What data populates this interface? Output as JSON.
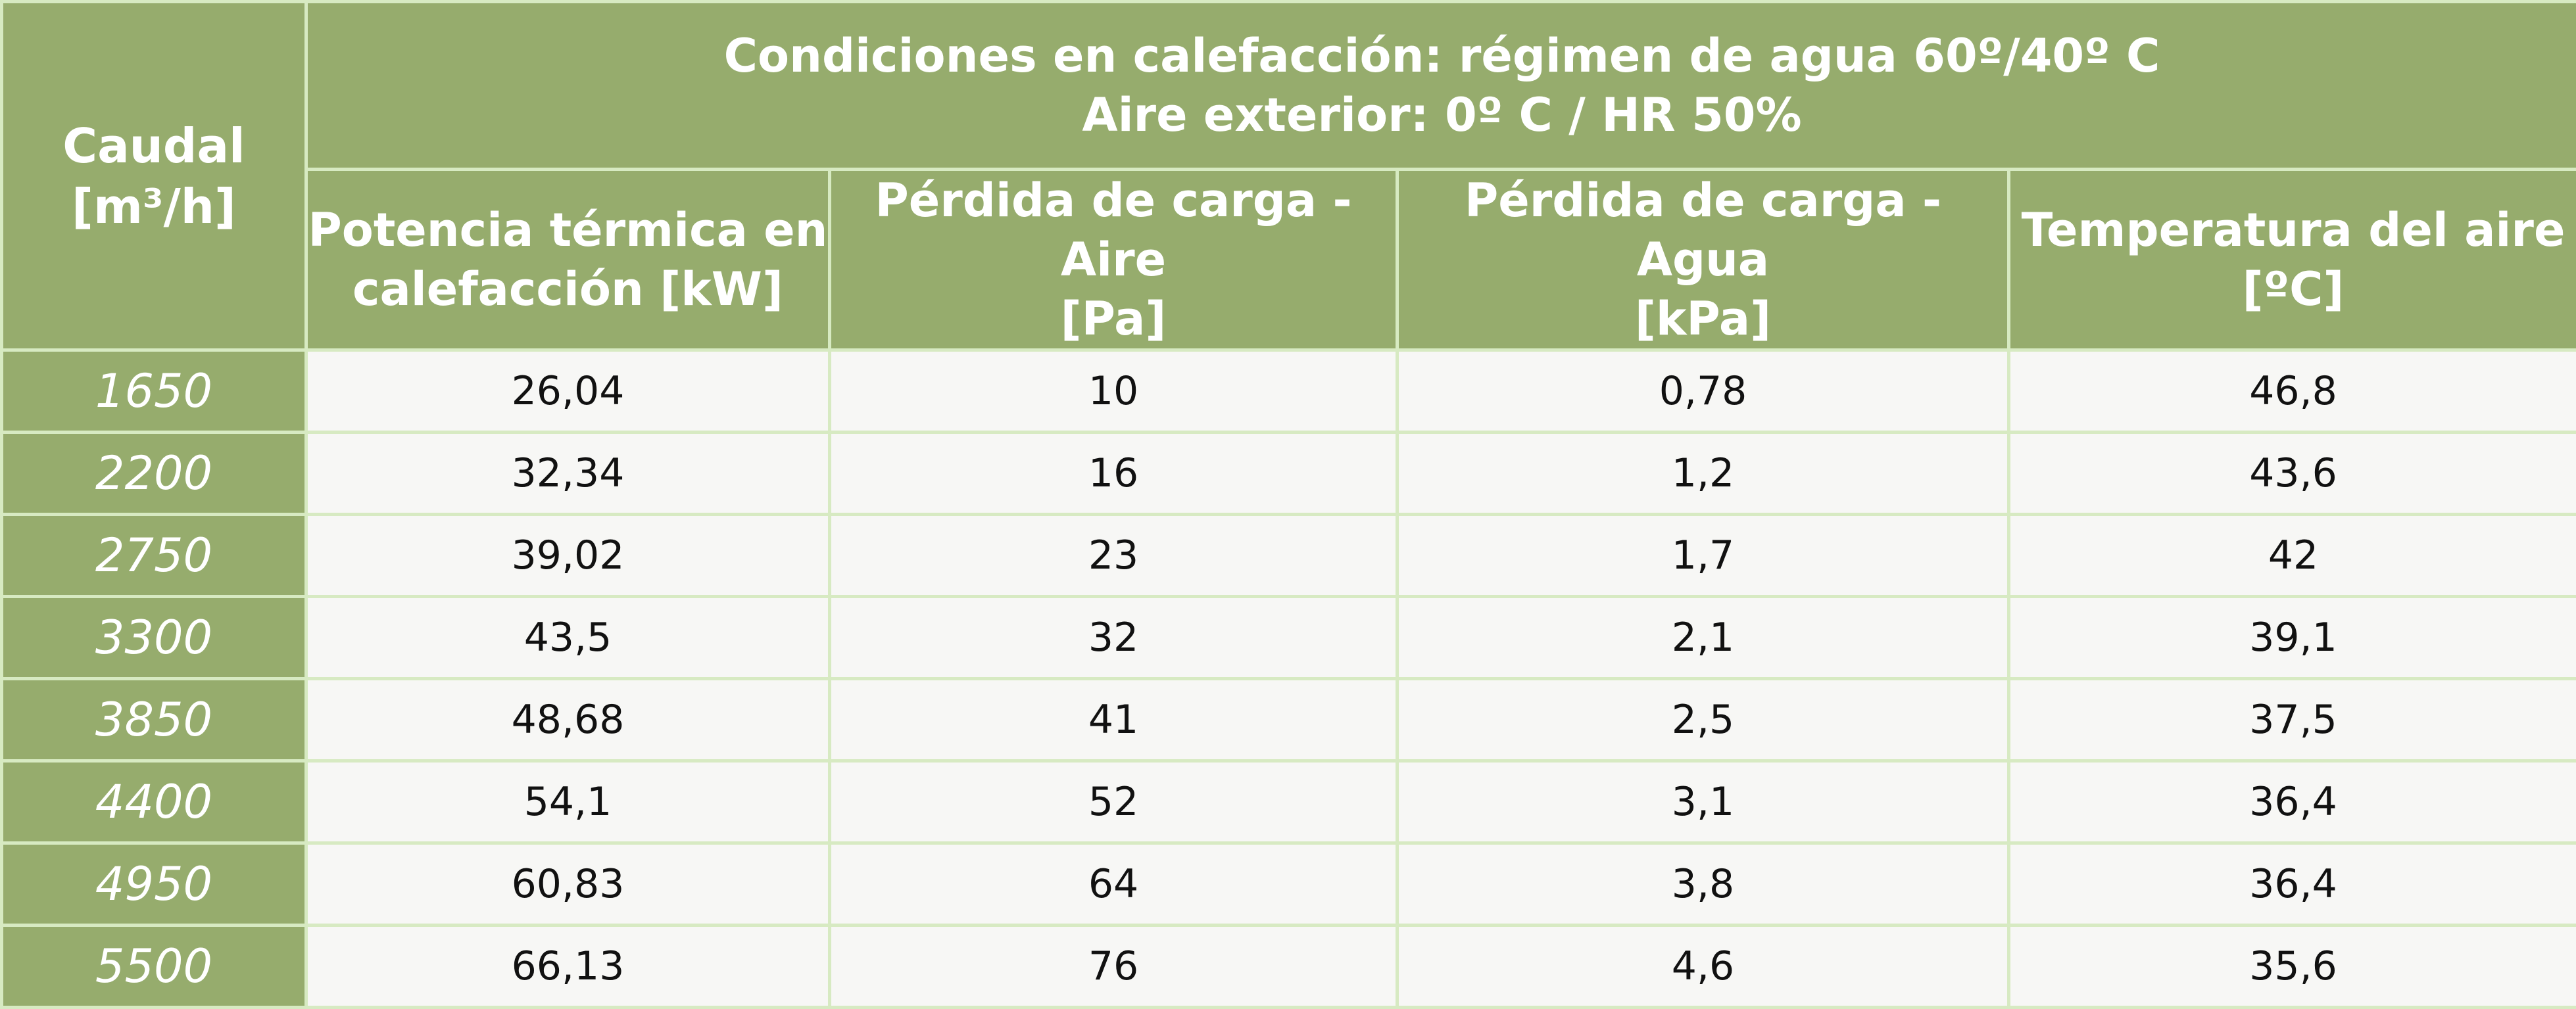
{
  "table": {
    "flow_header": [
      "Caudal",
      "[m³/h]"
    ],
    "group_header": [
      "Condiciones en calefacción: régimen de agua 60º/40º C",
      "Aire exterior: 0º C / HR 50%"
    ],
    "columns": [
      [
        "Potencia térmica en",
        "calefacción  [kW]"
      ],
      [
        "Pérdida de carga - Aire",
        "[Pa]"
      ],
      [
        "Pérdida de carga - Agua",
        "[kPa]"
      ],
      [
        "Temperatura del aire",
        "[ºC]"
      ]
    ],
    "rows": [
      {
        "caudal": "1650",
        "cells": [
          "26,04",
          "10",
          "0,78",
          "46,8"
        ]
      },
      {
        "caudal": "2200",
        "cells": [
          "32,34",
          "16",
          "1,2",
          "43,6"
        ]
      },
      {
        "caudal": "2750",
        "cells": [
          "39,02",
          "23",
          "1,7",
          "42"
        ]
      },
      {
        "caudal": "3300",
        "cells": [
          "43,5",
          "32",
          "2,1",
          "39,1"
        ]
      },
      {
        "caudal": "3850",
        "cells": [
          "48,68",
          "41",
          "2,5",
          "37,5"
        ]
      },
      {
        "caudal": "4400",
        "cells": [
          "54,1",
          "52",
          "3,1",
          "36,4"
        ]
      },
      {
        "caudal": "4950",
        "cells": [
          "60,83",
          "64",
          "3,8",
          "36,4"
        ]
      },
      {
        "caudal": "5500",
        "cells": [
          "66,13",
          "76",
          "4,6",
          "35,6"
        ]
      }
    ]
  },
  "colors": {
    "header_green": "#96ac6d",
    "grid_line": "#d7eac2",
    "cell_bg": "#f7f7f5",
    "text_white": "#ffffff",
    "text_dark": "#111111"
  }
}
